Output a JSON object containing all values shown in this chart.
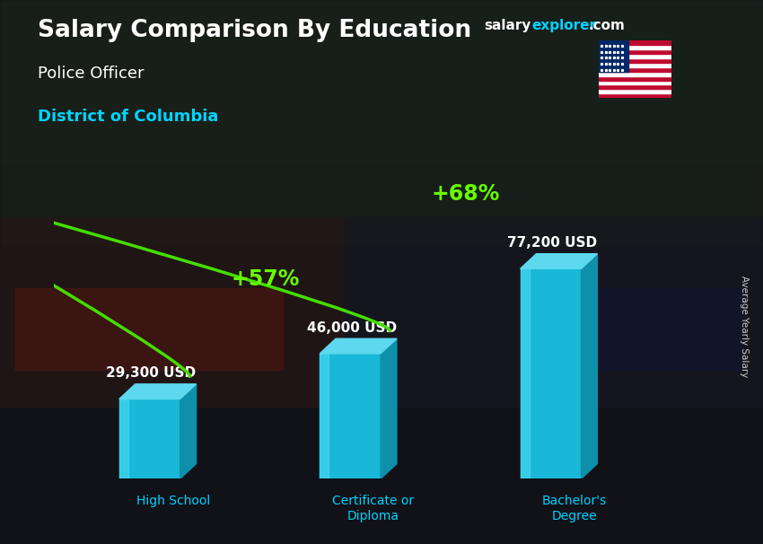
{
  "title": "Salary Comparison By Education",
  "subtitle": "Police Officer",
  "location": "District of Columbia",
  "categories": [
    "High School",
    "Certificate or\nDiploma",
    "Bachelor's\nDegree"
  ],
  "values": [
    29300,
    46000,
    77200
  ],
  "labels": [
    "29,300 USD",
    "46,000 USD",
    "77,200 USD"
  ],
  "pct_labels": [
    "+57%",
    "+68%"
  ],
  "bar_front": "#1ab8d8",
  "bar_top": "#5dd8ee",
  "bar_side": "#0e8faa",
  "bg_color": "#1a1a2e",
  "title_color": "#ffffff",
  "subtitle_color": "#ffffff",
  "location_color": "#00d4ff",
  "label_color": "#ffffff",
  "pct_color": "#66ff00",
  "arrow_color": "#44dd00",
  "xlabel_color": "#00d4ff",
  "watermark_salary": "#ffffff",
  "watermark_explorer": "#00d4ff",
  "watermark_com": "#ffffff",
  "right_label": "Average Yearly Salary",
  "ylim": [
    0,
    100000
  ],
  "bar_width": 0.38,
  "x_positions": [
    0.9,
    2.15,
    3.4
  ],
  "figsize": [
    8.5,
    6.06
  ],
  "dpi": 100
}
